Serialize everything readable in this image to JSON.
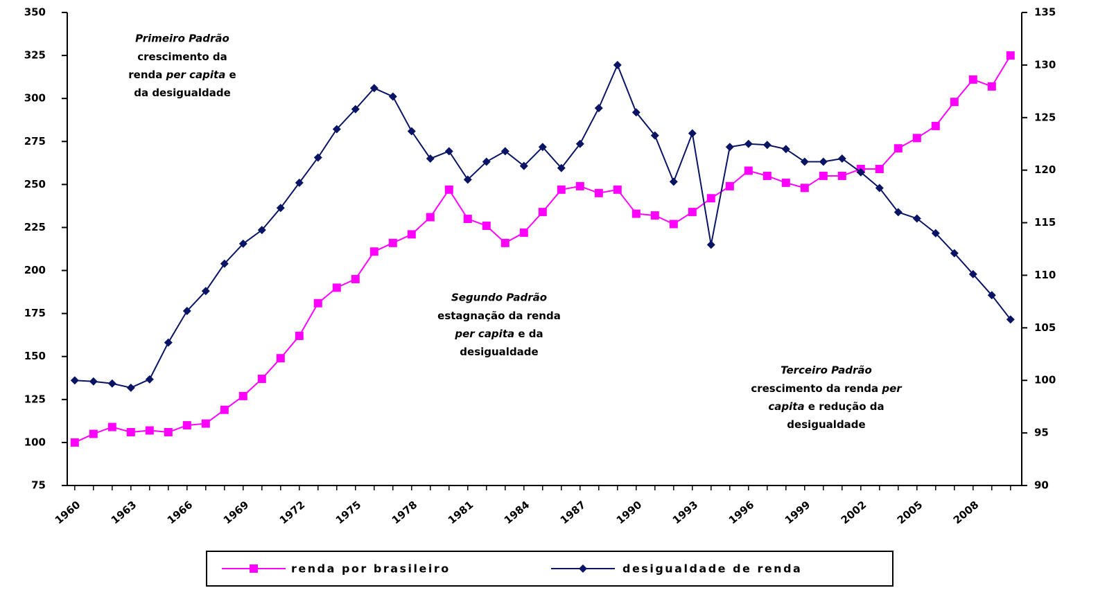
{
  "chart_data": {
    "type": "line",
    "x": [
      1960,
      1961,
      1962,
      1963,
      1964,
      1965,
      1966,
      1967,
      1968,
      1969,
      1970,
      1971,
      1972,
      1973,
      1974,
      1975,
      1976,
      1977,
      1978,
      1979,
      1980,
      1981,
      1982,
      1983,
      1984,
      1985,
      1986,
      1987,
      1988,
      1989,
      1990,
      1991,
      1992,
      1993,
      1994,
      1995,
      1996,
      1997,
      1998,
      1999,
      2000,
      2001,
      2002,
      2003,
      2004,
      2005,
      2006,
      2007,
      2008,
      2009,
      2010
    ],
    "xlim": [
      1959.6,
      2010.6
    ],
    "xticks": [
      1960,
      1963,
      1966,
      1969,
      1972,
      1975,
      1978,
      1981,
      1984,
      1987,
      1990,
      1993,
      1996,
      1999,
      2002,
      2005,
      2008
    ],
    "ylim": [
      75,
      350
    ],
    "yticks": [
      75,
      100,
      125,
      150,
      175,
      200,
      225,
      250,
      275,
      300,
      325,
      350
    ],
    "y2lim": [
      90,
      135
    ],
    "y2ticks": [
      90,
      95,
      100,
      105,
      110,
      115,
      120,
      125,
      130,
      135
    ],
    "series": [
      {
        "name": "renda por brasileiro",
        "color": "#ff00ff",
        "marker": "square",
        "values": [
          100,
          105,
          109,
          106,
          107,
          106,
          110,
          111,
          119,
          127,
          137,
          149,
          162,
          181,
          190,
          195,
          211,
          216,
          221,
          231,
          247,
          230,
          226,
          216,
          222,
          234,
          247,
          249,
          245,
          247,
          233,
          232,
          227,
          234,
          242,
          249,
          258,
          255,
          251,
          248,
          255,
          255,
          259,
          259,
          271,
          277,
          284,
          298,
          311,
          307,
          325
        ]
      },
      {
        "name": "desigualdade de renda",
        "color": "#0a1464",
        "marker": "diamond",
        "axis": "y2",
        "values": [
          100,
          99.9,
          99.7,
          99.3,
          100.1,
          103.6,
          106.6,
          108.5,
          111.1,
          113,
          114.3,
          116.4,
          118.8,
          121.2,
          123.9,
          125.8,
          127.8,
          127,
          123.7,
          121.1,
          121.8,
          119.1,
          120.8,
          121.8,
          120.4,
          122.2,
          120.2,
          122.5,
          125.9,
          130,
          125.5,
          123.3,
          118.9,
          123.5,
          112.9,
          122.2,
          122.5,
          122.4,
          122,
          120.8,
          120.8,
          121.1,
          119.8,
          118.3,
          116,
          115.4,
          114,
          112.1,
          110.1,
          108.1,
          105.8
        ]
      }
    ],
    "annotations": [
      {
        "title": "Primeiro Padrão",
        "lines": [
          [
            {
              "text": "crescimento da"
            }
          ],
          [
            {
              "text": "renda "
            },
            {
              "text": "per capita",
              "italic": true
            },
            {
              "text": " e"
            }
          ],
          [
            {
              "text": "da desigualdade"
            }
          ]
        ]
      },
      {
        "title": "Segundo Padrão",
        "lines": [
          [
            {
              "text": "estagnação da renda"
            }
          ],
          [
            {
              "text": "per capita",
              "italic": true
            },
            {
              "text": " e da"
            }
          ],
          [
            {
              "text": "desigualdade"
            }
          ]
        ]
      },
      {
        "title": "Terceiro Padrão",
        "lines": [
          [
            {
              "text": "crescimento da renda "
            },
            {
              "text": "per",
              "italic": true
            }
          ],
          [
            {
              "text": "capita",
              "italic": true
            },
            {
              "text": " e redução da"
            }
          ],
          [
            {
              "text": "desigualdade"
            }
          ]
        ]
      }
    ]
  }
}
